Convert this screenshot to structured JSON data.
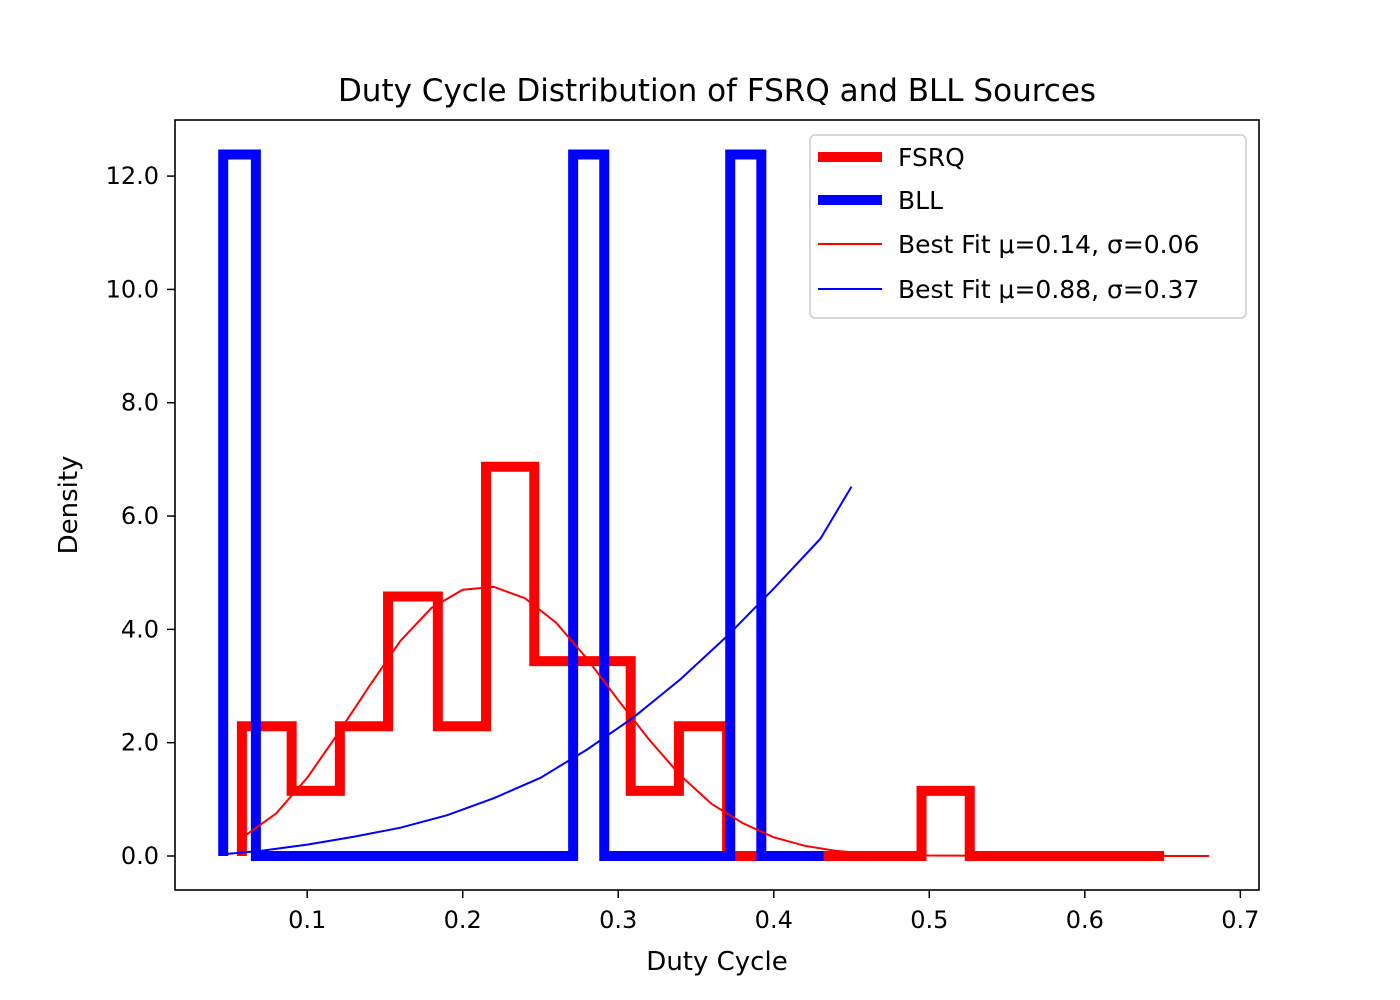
{
  "chart_data": {
    "type": "histogram-step",
    "title": "Duty Cycle Distribution of FSRQ and BLL Sources",
    "xlabel": "Duty Cycle",
    "ylabel": "Density",
    "xlim": [
      0.015,
      0.712
    ],
    "ylim": [
      -0.6,
      12.99
    ],
    "xticks": [
      0.1,
      0.2,
      0.3,
      0.4,
      0.5,
      0.6,
      0.7
    ],
    "xtick_labels": [
      "0.1",
      "0.2",
      "0.3",
      "0.4",
      "0.5",
      "0.6",
      "0.7"
    ],
    "yticks": [
      0,
      2,
      4,
      6,
      8,
      10,
      12
    ],
    "ytick_labels": [
      "0.0",
      "2.0",
      "4.0",
      "6.0",
      "8.0",
      "10.0",
      "12.0"
    ],
    "grid": false,
    "legend_position": "top-right",
    "legend": [
      {
        "label": "FSRQ",
        "style": "thick",
        "color": "#ff0000"
      },
      {
        "label": "BLL",
        "style": "thick",
        "color": "#0000ff"
      },
      {
        "label": "Best Fit μ=0.14, σ=0.06",
        "style": "thin",
        "color": "#ff0000"
      },
      {
        "label": "Best Fit μ=0.88, σ=0.37",
        "style": "thin",
        "color": "#0000ff"
      }
    ],
    "series": [
      {
        "name": "FSRQ",
        "kind": "step",
        "color": "#ff0000",
        "edges": [
          0.058,
          0.09,
          0.121,
          0.152,
          0.184,
          0.215,
          0.246,
          0.277,
          0.308,
          0.339,
          0.37,
          0.402,
          0.433,
          0.464,
          0.495,
          0.526,
          0.557,
          0.589,
          0.62,
          0.651
        ],
        "values": [
          2.29,
          1.15,
          2.29,
          4.58,
          2.29,
          6.87,
          3.44,
          3.44,
          1.15,
          2.29,
          0,
          0,
          0,
          0,
          1.15,
          0,
          0,
          0,
          0
        ]
      },
      {
        "name": "BLL",
        "kind": "step",
        "color": "#0000ff",
        "edges": [
          0.046,
          0.067,
          0.088,
          0.109,
          0.129,
          0.15,
          0.171,
          0.192,
          0.213,
          0.233,
          0.254,
          0.271,
          0.291,
          0.312,
          0.333,
          0.354,
          0.372,
          0.392,
          0.412,
          0.432
        ],
        "values": [
          12.38,
          0,
          0,
          0,
          0,
          0,
          0,
          0,
          0,
          0,
          0,
          12.38,
          0,
          0,
          0,
          0,
          12.38,
          0,
          0
        ]
      },
      {
        "name": "Best Fit μ=0.14, σ=0.06",
        "kind": "curve",
        "color": "#ff0000",
        "points": [
          [
            0.056,
            0.28
          ],
          [
            0.08,
            0.75
          ],
          [
            0.1,
            1.38
          ],
          [
            0.12,
            2.17
          ],
          [
            0.14,
            3.0
          ],
          [
            0.16,
            3.8
          ],
          [
            0.18,
            4.38
          ],
          [
            0.2,
            4.7
          ],
          [
            0.22,
            4.75
          ],
          [
            0.24,
            4.55
          ],
          [
            0.26,
            4.12
          ],
          [
            0.28,
            3.48
          ],
          [
            0.3,
            2.75
          ],
          [
            0.32,
            2.05
          ],
          [
            0.34,
            1.42
          ],
          [
            0.36,
            0.92
          ],
          [
            0.38,
            0.58
          ],
          [
            0.4,
            0.33
          ],
          [
            0.42,
            0.18
          ],
          [
            0.44,
            0.09
          ],
          [
            0.46,
            0.045
          ],
          [
            0.5,
            0.01
          ],
          [
            0.55,
            0.002
          ],
          [
            0.6,
            0.0
          ],
          [
            0.68,
            0.0
          ]
        ]
      },
      {
        "name": "Best Fit μ=0.88, σ=0.37",
        "kind": "curve",
        "color": "#0000ff",
        "points": [
          [
            0.046,
            0.03
          ],
          [
            0.07,
            0.09
          ],
          [
            0.1,
            0.2
          ],
          [
            0.13,
            0.34
          ],
          [
            0.16,
            0.5
          ],
          [
            0.19,
            0.72
          ],
          [
            0.22,
            1.02
          ],
          [
            0.25,
            1.38
          ],
          [
            0.28,
            1.88
          ],
          [
            0.31,
            2.45
          ],
          [
            0.34,
            3.12
          ],
          [
            0.37,
            3.88
          ],
          [
            0.4,
            4.72
          ],
          [
            0.43,
            5.6
          ],
          [
            0.45,
            6.52
          ]
        ]
      }
    ]
  }
}
